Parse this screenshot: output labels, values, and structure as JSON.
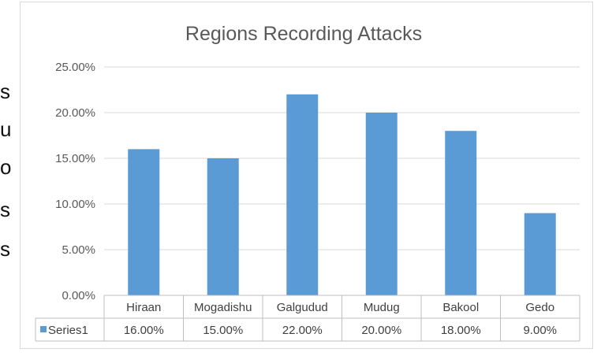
{
  "side_text": [
    "s",
    "u",
    "o",
    "s",
    "s"
  ],
  "chart_data": {
    "type": "bar",
    "title": "Regions Recording Attacks",
    "categories": [
      "Hiraan",
      "Mogadishu",
      "Galgudud",
      "Mudug",
      "Bakool",
      "Gedo"
    ],
    "series": [
      {
        "name": "Series1",
        "values": [
          16.0,
          15.0,
          22.0,
          20.0,
          18.0,
          9.0
        ],
        "labels": [
          "16.00%",
          "15.00%",
          "22.00%",
          "20.00%",
          "18.00%",
          "9.00%"
        ],
        "color": "#5b9bd5"
      }
    ],
    "ylim": [
      0,
      25
    ],
    "yticks": [
      "0.00%",
      "5.00%",
      "10.00%",
      "15.00%",
      "20.00%",
      "25.00%"
    ],
    "grid": true,
    "data_table": true
  }
}
